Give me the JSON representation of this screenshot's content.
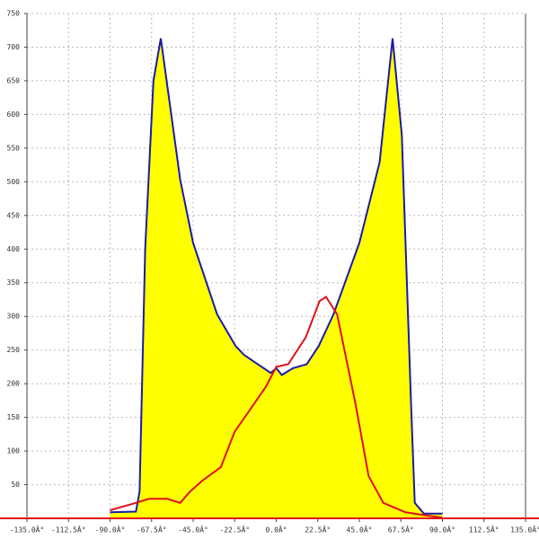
{
  "chart_data": {
    "type": "line",
    "xlim": [
      -135,
      135
    ],
    "ylim": [
      0,
      750
    ],
    "xticks": [
      {
        "value": -135,
        "label": "-135.0Â°"
      },
      {
        "value": -112.5,
        "label": "-112.5Â°"
      },
      {
        "value": -90,
        "label": "-90.0Â°"
      },
      {
        "value": -67.5,
        "label": "-67.5Â°"
      },
      {
        "value": -45,
        "label": "-45.0Â°"
      },
      {
        "value": -22.5,
        "label": "-22.5Â°"
      },
      {
        "value": 0,
        "label": "0.0Â°"
      },
      {
        "value": 22.5,
        "label": "22.5Â°"
      },
      {
        "value": 45,
        "label": "45.0Â°"
      },
      {
        "value": 67.5,
        "label": "67.5Â°"
      },
      {
        "value": 90,
        "label": "90.0Â°"
      },
      {
        "value": 112.5,
        "label": "112.5Â°"
      },
      {
        "value": 135,
        "label": "135.0Â°"
      }
    ],
    "yticks": [
      50,
      100,
      150,
      200,
      250,
      300,
      350,
      400,
      450,
      500,
      550,
      600,
      650,
      700,
      750
    ],
    "grid": true,
    "series": [
      {
        "color": "#1a1aa8",
        "fill": "#ffff00",
        "x": [
          -90,
          -76,
          -74,
          -71,
          -66.5,
          -62.5,
          -52,
          -45,
          -32,
          -22,
          -17.5,
          -10,
          -3,
          0,
          3,
          9,
          16.5,
          23,
          31,
          45,
          56,
          63,
          68,
          73,
          75,
          80,
          90
        ],
        "values": [
          9,
          10,
          40,
          400,
          650,
          713,
          503,
          409,
          303,
          256,
          243,
          229,
          216,
          223,
          213,
          223,
          229,
          256,
          303,
          409,
          529,
          713,
          569,
          169,
          23,
          7,
          7
        ]
      },
      {
        "color": "#e0101a",
        "x": [
          -90,
          -76,
          -69,
          -59,
          -52,
          -47,
          -40,
          -30,
          -22.5,
          -15.5,
          -5.5,
          0,
          6.5,
          16,
          23.5,
          27,
          33,
          43,
          50,
          58,
          70,
          82,
          90
        ],
        "values": [
          12,
          23,
          29,
          29,
          23,
          39,
          56,
          76,
          129,
          156,
          196,
          225,
          229,
          269,
          323,
          329,
          303,
          169,
          63,
          23,
          9,
          4,
          1
        ]
      }
    ]
  }
}
